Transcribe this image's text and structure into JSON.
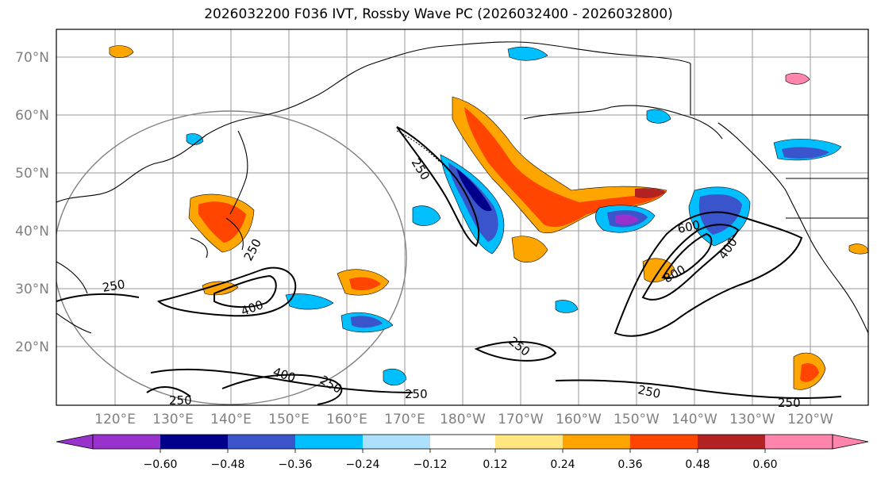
{
  "title": "2026032200 F036 IVT, Rossby Wave PC (2026032400 - 2026032800)",
  "map": {
    "lat_labels": [
      "70°N",
      "60°N",
      "50°N",
      "40°N",
      "30°N",
      "20°N"
    ],
    "lon_labels": [
      "120°E",
      "130°E",
      "140°E",
      "150°E",
      "160°E",
      "170°E",
      "180°W",
      "170°W",
      "160°W",
      "150°W",
      "140°W",
      "130°W",
      "120°W"
    ],
    "contour_labels": [
      "250",
      "250",
      "250",
      "250",
      "250",
      "250",
      "250",
      "250",
      "250",
      "400",
      "400",
      "400",
      "600",
      "800"
    ],
    "colors": {
      "neg_060": "#9932CC",
      "neg_048": "#00008B",
      "neg_036": "#3A55CC",
      "neg_024": "#00BFFF",
      "neg_012": "#ADDFFF",
      "zero": "#FFFFFF",
      "pos_012": "#FFE680",
      "pos_024": "#FFA500",
      "pos_036": "#FF4500",
      "pos_048": "#B22222",
      "pos_060": "#FF85AD"
    }
  },
  "colorbar": {
    "ticks": [
      "−0.60",
      "−0.48",
      "−0.36",
      "−0.24",
      "−0.12",
      "0.12",
      "0.24",
      "0.36",
      "0.48",
      "0.60"
    ]
  }
}
